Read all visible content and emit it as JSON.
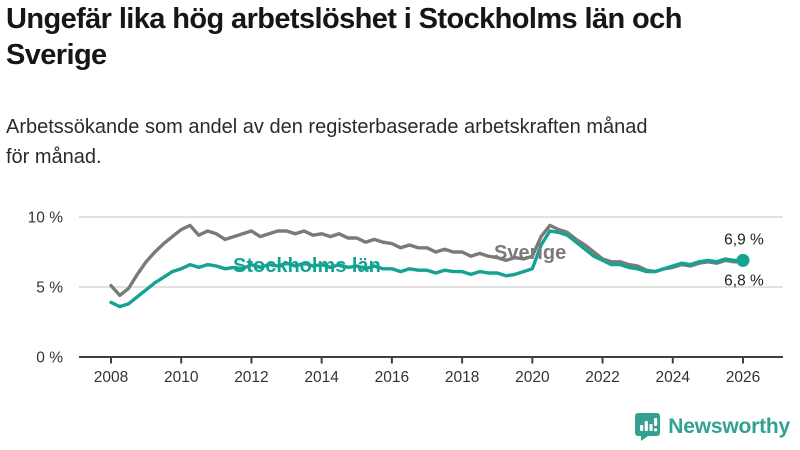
{
  "header": {
    "title": "Ungefär lika hög arbetslöshet i Stockholms län och\nSverige",
    "subtitle": "Arbetssökande som andel av den registerbaserade arbetskraften månad\nför månad."
  },
  "chart_data": {
    "type": "line",
    "title": "Ungefär lika hög arbetslöshet i Stockholms län och Sverige",
    "xlabel": "",
    "ylabel": "Arbetssökande som andel av den registerbaserade arbetskraften (%)",
    "ylim": [
      0,
      11
    ],
    "xlim": [
      2007.9,
      2027.1
    ],
    "grid": "horizontal",
    "legend_position": "inline-labels",
    "unit": "%",
    "y_axis": {
      "ticks": [
        {
          "value": 10,
          "label": "10 %"
        },
        {
          "value": 5,
          "label": "5 %"
        },
        {
          "value": 0,
          "label": "0 %"
        }
      ]
    },
    "x_axis": {
      "ticks": [
        2008,
        2010,
        2012,
        2014,
        2016,
        2018,
        2020,
        2022,
        2024,
        2026
      ]
    },
    "series": [
      {
        "name": "Sverige",
        "color": "#7a7a7a",
        "end_label": "6,8 %",
        "end_value": 6.8,
        "points": [
          [
            2008.0,
            5.1
          ],
          [
            2008.25,
            4.4
          ],
          [
            2008.5,
            4.9
          ],
          [
            2008.75,
            5.9
          ],
          [
            2009.0,
            6.8
          ],
          [
            2009.25,
            7.5
          ],
          [
            2009.5,
            8.1
          ],
          [
            2009.75,
            8.6
          ],
          [
            2010.0,
            9.1
          ],
          [
            2010.25,
            9.4
          ],
          [
            2010.5,
            8.7
          ],
          [
            2010.75,
            9.0
          ],
          [
            2011.0,
            8.8
          ],
          [
            2011.25,
            8.4
          ],
          [
            2011.5,
            8.6
          ],
          [
            2011.75,
            8.8
          ],
          [
            2012.0,
            9.0
          ],
          [
            2012.25,
            8.6
          ],
          [
            2012.5,
            8.8
          ],
          [
            2012.75,
            9.0
          ],
          [
            2013.0,
            9.0
          ],
          [
            2013.25,
            8.8
          ],
          [
            2013.5,
            9.0
          ],
          [
            2013.75,
            8.7
          ],
          [
            2014.0,
            8.8
          ],
          [
            2014.25,
            8.6
          ],
          [
            2014.5,
            8.8
          ],
          [
            2014.75,
            8.5
          ],
          [
            2015.0,
            8.5
          ],
          [
            2015.25,
            8.2
          ],
          [
            2015.5,
            8.4
          ],
          [
            2015.75,
            8.2
          ],
          [
            2016.0,
            8.1
          ],
          [
            2016.25,
            7.8
          ],
          [
            2016.5,
            8.0
          ],
          [
            2016.75,
            7.8
          ],
          [
            2017.0,
            7.8
          ],
          [
            2017.25,
            7.5
          ],
          [
            2017.5,
            7.7
          ],
          [
            2017.75,
            7.5
          ],
          [
            2018.0,
            7.5
          ],
          [
            2018.25,
            7.2
          ],
          [
            2018.5,
            7.4
          ],
          [
            2018.75,
            7.2
          ],
          [
            2019.0,
            7.1
          ],
          [
            2019.25,
            6.9
          ],
          [
            2019.5,
            7.1
          ],
          [
            2019.75,
            7.0
          ],
          [
            2020.0,
            7.2
          ],
          [
            2020.25,
            8.6
          ],
          [
            2020.5,
            9.4
          ],
          [
            2020.75,
            9.1
          ],
          [
            2021.0,
            8.9
          ],
          [
            2021.25,
            8.4
          ],
          [
            2021.5,
            8.0
          ],
          [
            2021.75,
            7.5
          ],
          [
            2022.0,
            7.0
          ],
          [
            2022.25,
            6.8
          ],
          [
            2022.5,
            6.8
          ],
          [
            2022.75,
            6.6
          ],
          [
            2023.0,
            6.5
          ],
          [
            2023.25,
            6.2
          ],
          [
            2023.5,
            6.1
          ],
          [
            2023.75,
            6.3
          ],
          [
            2024.0,
            6.4
          ],
          [
            2024.25,
            6.6
          ],
          [
            2024.5,
            6.5
          ],
          [
            2024.75,
            6.7
          ],
          [
            2025.0,
            6.8
          ],
          [
            2025.25,
            6.7
          ],
          [
            2025.5,
            6.9
          ],
          [
            2025.75,
            6.8
          ],
          [
            2026.0,
            6.8
          ]
        ]
      },
      {
        "name": "Stockholms län",
        "color": "#14a392",
        "end_label": "6,9 %",
        "end_value": 6.9,
        "end_dot": true,
        "points": [
          [
            2008.0,
            3.9
          ],
          [
            2008.25,
            3.6
          ],
          [
            2008.5,
            3.8
          ],
          [
            2008.75,
            4.3
          ],
          [
            2009.0,
            4.8
          ],
          [
            2009.25,
            5.3
          ],
          [
            2009.5,
            5.7
          ],
          [
            2009.75,
            6.1
          ],
          [
            2010.0,
            6.3
          ],
          [
            2010.25,
            6.6
          ],
          [
            2010.5,
            6.4
          ],
          [
            2010.75,
            6.6
          ],
          [
            2011.0,
            6.5
          ],
          [
            2011.25,
            6.3
          ],
          [
            2011.5,
            6.4
          ],
          [
            2011.75,
            6.3
          ],
          [
            2012.0,
            6.6
          ],
          [
            2012.25,
            6.4
          ],
          [
            2012.5,
            6.6
          ],
          [
            2012.75,
            6.5
          ],
          [
            2013.0,
            6.7
          ],
          [
            2013.25,
            6.5
          ],
          [
            2013.5,
            6.7
          ],
          [
            2013.75,
            6.5
          ],
          [
            2014.0,
            6.6
          ],
          [
            2014.25,
            6.4
          ],
          [
            2014.5,
            6.6
          ],
          [
            2014.75,
            6.4
          ],
          [
            2015.0,
            6.5
          ],
          [
            2015.25,
            6.3
          ],
          [
            2015.5,
            6.5
          ],
          [
            2015.75,
            6.3
          ],
          [
            2016.0,
            6.3
          ],
          [
            2016.25,
            6.1
          ],
          [
            2016.5,
            6.3
          ],
          [
            2016.75,
            6.2
          ],
          [
            2017.0,
            6.2
          ],
          [
            2017.25,
            6.0
          ],
          [
            2017.5,
            6.2
          ],
          [
            2017.75,
            6.1
          ],
          [
            2018.0,
            6.1
          ],
          [
            2018.25,
            5.9
          ],
          [
            2018.5,
            6.1
          ],
          [
            2018.75,
            6.0
          ],
          [
            2019.0,
            6.0
          ],
          [
            2019.25,
            5.8
          ],
          [
            2019.5,
            5.9
          ],
          [
            2019.75,
            6.1
          ],
          [
            2020.0,
            6.3
          ],
          [
            2020.25,
            8.0
          ],
          [
            2020.5,
            9.0
          ],
          [
            2020.75,
            8.9
          ],
          [
            2021.0,
            8.7
          ],
          [
            2021.25,
            8.2
          ],
          [
            2021.5,
            7.7
          ],
          [
            2021.75,
            7.2
          ],
          [
            2022.0,
            6.9
          ],
          [
            2022.25,
            6.6
          ],
          [
            2022.5,
            6.6
          ],
          [
            2022.75,
            6.4
          ],
          [
            2023.0,
            6.3
          ],
          [
            2023.25,
            6.1
          ],
          [
            2023.5,
            6.1
          ],
          [
            2023.75,
            6.3
          ],
          [
            2024.0,
            6.5
          ],
          [
            2024.25,
            6.7
          ],
          [
            2024.5,
            6.6
          ],
          [
            2024.75,
            6.8
          ],
          [
            2025.0,
            6.9
          ],
          [
            2025.25,
            6.8
          ],
          [
            2025.5,
            7.0
          ],
          [
            2025.75,
            6.9
          ],
          [
            2026.0,
            6.9
          ]
        ]
      }
    ]
  },
  "colors": {
    "grid": "#d9d9d9",
    "axis": "#404040",
    "brand": "#34a08f"
  },
  "footer": {
    "brand_name": "Newsworthy"
  }
}
